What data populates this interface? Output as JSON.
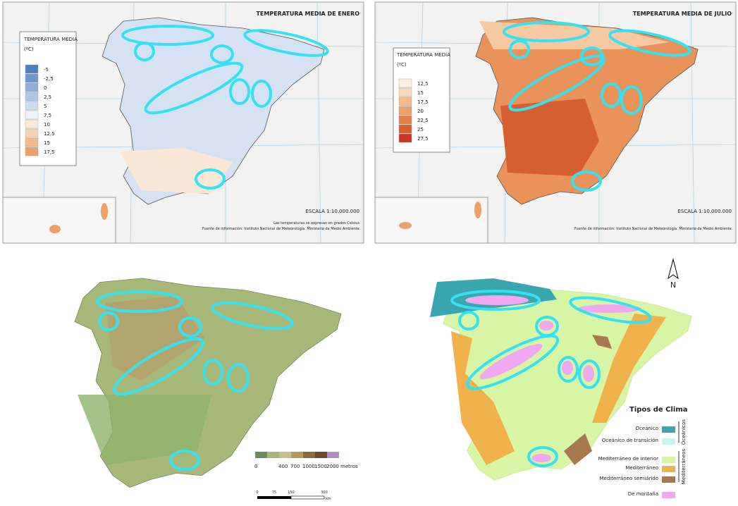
{
  "maps": [
    {
      "title": "TEMPERATURA MEDIA DE ENERO",
      "legend_title": "TEMPERATURA MEDIA",
      "unit": "(ºC)",
      "labels": [
        "-5",
        "-2,5",
        "0",
        "2,5",
        "5",
        "7,5",
        "10",
        "12,5",
        "15",
        "17,5"
      ],
      "colors": [
        "#4f7fc0",
        "#6f97cf",
        "#8eaedb",
        "#aec6e8",
        "#cddcf2",
        "#eef3fb",
        "#fbe9d8",
        "#f7d3b1",
        "#f3bb8a",
        "#eea068"
      ],
      "scale": "ESCALA 1:10.000.000",
      "notes": [
        "Las temperaturas se expresan en grados Celsius",
        "Fuente de información: Instituto Nacional de Meteorología. Ministerio de Medio Ambiente"
      ]
    },
    {
      "title": "TEMPERATURA MEDIA DE JULIO",
      "legend_title": "TEMPERATURA MEDIA",
      "unit": "(ºC)",
      "labels": [
        "12,5",
        "15",
        "17,5",
        "20",
        "22,5",
        "25",
        "27,5"
      ],
      "colors": [
        "#fdf0e3",
        "#fad9bb",
        "#f5bd8f",
        "#eea06a",
        "#e4804a",
        "#d75f30",
        "#c63a22"
      ],
      "scale": "ESCALA 1:10.000.000",
      "notes": [
        "Fuente de información: Instituto Nacional de Meteorología. Ministerio de Medio Ambiente"
      ]
    }
  ],
  "relief": {
    "legend_labels": [
      "0",
      "400",
      "700",
      "1000",
      "1500",
      "2000 metros"
    ],
    "colors": [
      "#6c8a5c",
      "#a7b674",
      "#c9c089",
      "#b39a5c",
      "#8b6a3a",
      "#6b4a2c",
      "#b191c4"
    ],
    "scale_labels": [
      "0",
      "75",
      "150",
      "300"
    ],
    "scale_unit": "km"
  },
  "climate": {
    "north": "N",
    "title": "Tipos de Clima",
    "items": [
      {
        "label": "Oceánico",
        "color": "#3aa7b0"
      },
      {
        "label": "Oceánico de transición",
        "color": "#c9f5ef"
      },
      {
        "label": "Mediterráneo de interior",
        "color": "#d8f5a6"
      },
      {
        "label": "Mediterráneo",
        "color": "#f0b24a"
      },
      {
        "label": "Mediterráneo semiárido",
        "color": "#a8794e"
      },
      {
        "label": "De montaña",
        "color": "#f0a8f0"
      }
    ],
    "groups": [
      "Oceánicos",
      "Mediterráneos"
    ]
  }
}
